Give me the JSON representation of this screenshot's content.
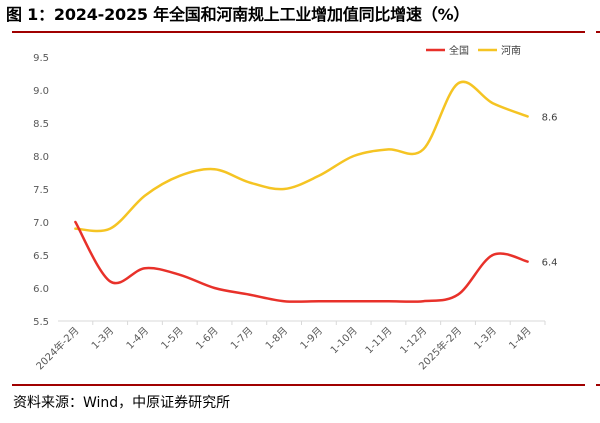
{
  "figure": {
    "title": "图 1：2024-2025 年全国和河南规上工业增加值同比增速（%）",
    "source": "资料来源：Wind，中原证券研究所"
  },
  "chart_data": {
    "type": "line",
    "categories": [
      "2024年-2月",
      "1-3月",
      "1-4月",
      "1-5月",
      "1-6月",
      "1-7月",
      "1-8月",
      "1-9月",
      "1-10月",
      "1-11月",
      "1-12月",
      "2025年-2月",
      "1-3月",
      "1-4月"
    ],
    "series": [
      {
        "name": "全国",
        "color": "#e8312a",
        "values": [
          7.0,
          6.1,
          6.3,
          6.2,
          6.0,
          5.9,
          5.8,
          5.8,
          5.8,
          5.8,
          5.8,
          5.9,
          6.5,
          6.4
        ],
        "end_label": "6.4"
      },
      {
        "name": "河南",
        "color": "#f5c423",
        "values": [
          6.9,
          6.9,
          7.4,
          7.7,
          7.8,
          7.6,
          7.5,
          7.7,
          8.0,
          8.1,
          8.1,
          9.1,
          8.8,
          8.6
        ],
        "end_label": "8.6"
      }
    ],
    "ylim": [
      5.5,
      9.5
    ],
    "yticks": [
      "5.5",
      "6.0",
      "6.5",
      "7.0",
      "7.5",
      "8.0",
      "8.5",
      "9.0",
      "9.5"
    ],
    "ytick_values": [
      5.5,
      6.0,
      6.5,
      7.0,
      7.5,
      8.0,
      8.5,
      9.0,
      9.5
    ],
    "xlabel": "",
    "ylabel": "",
    "grid": false,
    "legend": "top-right",
    "smooth": true
  }
}
